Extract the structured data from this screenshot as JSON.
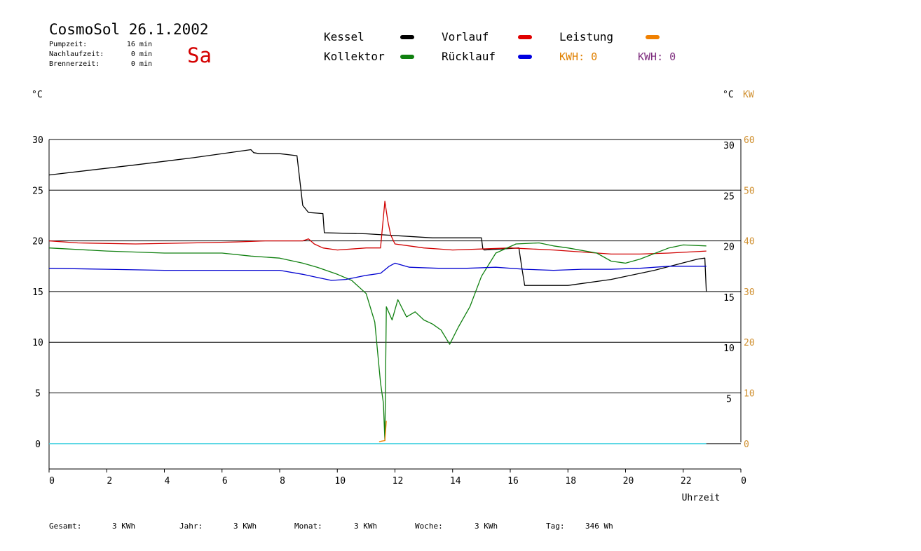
{
  "header": {
    "title": "CosmoSol 26.1.2002",
    "weekday": "Sa",
    "weekday_color": "#d40000",
    "stats": [
      {
        "label": "Pumpzeit:",
        "value": "16 min"
      },
      {
        "label": "Nachlaufzeit:",
        "value": "0 min"
      },
      {
        "label": "Brennerzeit:",
        "value": "0 min"
      }
    ]
  },
  "legend": {
    "kessel": {
      "label": "Kessel",
      "color": "#000000"
    },
    "vorlauf": {
      "label": "Vorlauf",
      "color": "#e00000"
    },
    "leistung": {
      "label": "Leistung",
      "color": "#f08000"
    },
    "kollektor": {
      "label": "Kollektor",
      "color": "#108010"
    },
    "ruecklauf": {
      "label": "Rücklauf",
      "color": "#0000e0"
    },
    "kwh_orange": {
      "text": "KWH: 0",
      "color": "#e08000"
    },
    "kwh_purple": {
      "text": "KWH: 0",
      "color": "#803080"
    }
  },
  "axes": {
    "left_unit": "°C",
    "right_unit": "°C",
    "right_unit2": "KW",
    "right_unit2_color": "#d09030",
    "xlabel": "Uhrzeit"
  },
  "footer": [
    {
      "label": "Gesamt:",
      "value": "3 KWh"
    },
    {
      "label": "Jahr:",
      "value": "3 KWh"
    },
    {
      "label": "Monat:",
      "value": "3 KWh"
    },
    {
      "label": "Woche:",
      "value": "3 KWh"
    },
    {
      "label": "Tag:",
      "value": "346 Wh"
    }
  ],
  "chart_data": {
    "type": "line",
    "x_unit": "hours",
    "xlim": [
      0,
      24
    ],
    "x_ticks": [
      "0",
      "2",
      "4",
      "6",
      "8",
      "10",
      "12",
      "14",
      "16",
      "18",
      "20",
      "22",
      "0"
    ],
    "ylim": [
      -2.5,
      30
    ],
    "y_ticks_left": [
      0,
      5,
      10,
      15,
      20,
      25,
      30
    ],
    "y_ticks_right": [
      5,
      10,
      15,
      20,
      25,
      30
    ],
    "y2_ticks": [
      0,
      10,
      20,
      30,
      40,
      50,
      60
    ],
    "y2_lim": [
      -5,
      60
    ],
    "grid_y": [
      5,
      10,
      15,
      20,
      25,
      30
    ],
    "zero_line_color": "#40d0e0",
    "series": [
      {
        "name": "Kessel",
        "color": "#000000",
        "x": [
          0,
          3,
          5,
          6.5,
          7.0,
          7.1,
          7.3,
          8.0,
          8.6,
          8.8,
          9.0,
          9.5,
          9.55,
          11.0,
          13.3,
          15.0,
          15.05,
          15.1,
          16.3,
          16.4,
          16.5,
          18.0,
          19.5,
          21.0,
          22.5,
          22.75,
          22.8
        ],
        "y": [
          26.5,
          27.5,
          28.2,
          28.8,
          29.0,
          28.7,
          28.6,
          28.6,
          28.4,
          23.5,
          22.8,
          22.7,
          20.8,
          20.7,
          20.3,
          20.3,
          19.2,
          19.1,
          19.3,
          17.4,
          15.6,
          15.6,
          16.2,
          17.1,
          18.2,
          18.3,
          15.0
        ]
      },
      {
        "name": "Vorlauf",
        "color": "#d00000",
        "x": [
          0,
          1,
          3,
          5,
          6.5,
          7.5,
          8.8,
          9.0,
          9.2,
          9.5,
          10.0,
          10.5,
          11.0,
          11.5,
          11.65,
          11.75,
          11.85,
          12.0,
          12.5,
          13.0,
          14.0,
          15.0,
          16.0,
          17.5,
          18.5,
          19.5,
          20.5,
          21.5,
          22.8
        ],
        "y": [
          20.0,
          19.8,
          19.7,
          19.8,
          19.9,
          20.0,
          20.0,
          20.2,
          19.7,
          19.3,
          19.1,
          19.2,
          19.3,
          19.3,
          23.9,
          22.0,
          20.6,
          19.7,
          19.5,
          19.3,
          19.1,
          19.2,
          19.3,
          19.1,
          18.9,
          18.7,
          18.7,
          18.8,
          19.0
        ]
      },
      {
        "name": "Kollektor",
        "color": "#108010",
        "x": [
          0,
          2,
          4,
          6,
          7,
          8,
          8.8,
          9.3,
          10,
          10.5,
          11.0,
          11.3,
          11.5,
          11.6,
          11.65,
          11.7,
          11.9,
          12.1,
          12.4,
          12.7,
          13.0,
          13.3,
          13.6,
          13.9,
          14.2,
          14.6,
          15.0,
          15.5,
          16.2,
          17.0,
          17.5,
          18.0,
          19.0,
          19.5,
          20.0,
          20.5,
          21.5,
          22.0,
          22.8
        ],
        "y": [
          19.3,
          19.0,
          18.8,
          18.8,
          18.5,
          18.3,
          17.8,
          17.4,
          16.7,
          16.1,
          14.8,
          12.0,
          6.0,
          4.0,
          0.3,
          13.5,
          12.2,
          14.2,
          12.5,
          13.0,
          12.2,
          11.8,
          11.2,
          9.8,
          11.5,
          13.5,
          16.5,
          18.8,
          19.7,
          19.8,
          19.5,
          19.3,
          18.8,
          18.0,
          17.8,
          18.2,
          19.3,
          19.6,
          19.5
        ]
      },
      {
        "name": "Rücklauf",
        "color": "#0000d0",
        "x": [
          0,
          2,
          4,
          6,
          8,
          8.8,
          9.3,
          9.8,
          10.3,
          11.0,
          11.5,
          11.8,
          12.0,
          12.5,
          13.5,
          14.5,
          15.5,
          16.5,
          17.5,
          18.5,
          19.5,
          20.5,
          21.5,
          22.8
        ],
        "y": [
          17.3,
          17.2,
          17.1,
          17.1,
          17.1,
          16.7,
          16.4,
          16.1,
          16.2,
          16.6,
          16.8,
          17.5,
          17.8,
          17.4,
          17.3,
          17.3,
          17.4,
          17.2,
          17.1,
          17.2,
          17.2,
          17.3,
          17.5,
          17.5
        ]
      },
      {
        "name": "Leistung",
        "color": "#f08000",
        "axis": "right",
        "x": [
          11.45,
          11.55,
          11.65,
          11.7
        ],
        "y": [
          0.4,
          0.5,
          0.6,
          4.5
        ]
      }
    ]
  }
}
